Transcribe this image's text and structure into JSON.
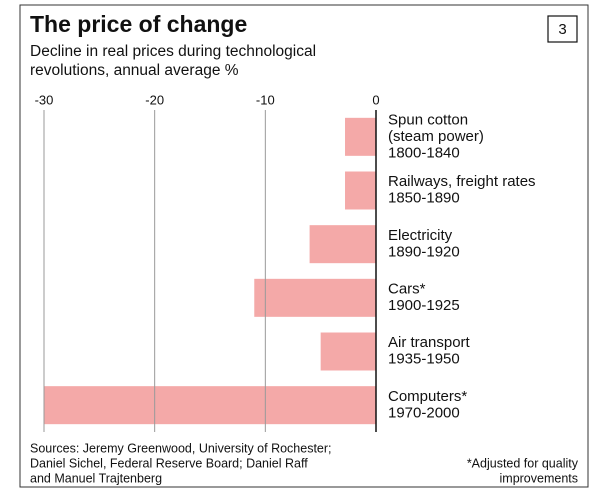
{
  "chart_data": {
    "type": "bar",
    "orientation": "horizontal",
    "title": "The price of change",
    "badge": "3",
    "subtitle": [
      "Decline in real prices during technological",
      "revolutions, annual average %"
    ],
    "categories": [
      [
        "Spun cotton",
        "(steam power)",
        "1800-1840"
      ],
      [
        "Railways, freight rates",
        "1850-1890"
      ],
      [
        "Electricity",
        "1890-1920"
      ],
      [
        "Cars*",
        "1900-1925"
      ],
      [
        "Air transport",
        "1935-1950"
      ],
      [
        "Computers*",
        "1970-2000"
      ]
    ],
    "values": [
      -2.8,
      -2.8,
      -6,
      -11,
      -5,
      -30
    ],
    "color": "#f4a9a8",
    "xlim": [
      -30,
      0
    ],
    "xticks": [
      -30,
      -20,
      -10,
      0
    ],
    "grid": true,
    "sources": [
      "Sources: Jeremy Greenwood, University of Rochester;",
      "Daniel Sichel, Federal Reserve Board; Daniel Raff",
      "and Manuel Trajtenberg"
    ],
    "footnote": [
      "*Adjusted for quality",
      "improvements"
    ]
  }
}
